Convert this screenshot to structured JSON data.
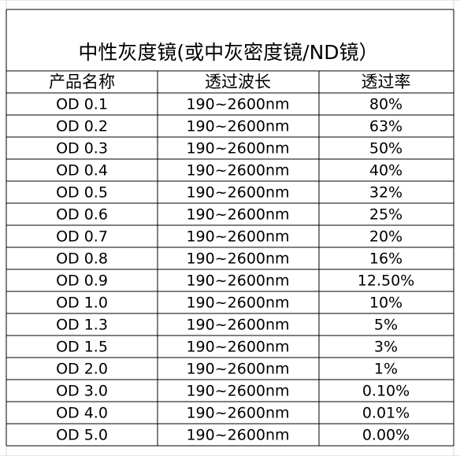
{
  "table": {
    "title": "中性灰度镜(或中灰密度镜/ND镜）",
    "headers": [
      "产品名称",
      "透过波长",
      "透过率"
    ],
    "rows": [
      [
        "OD 0.1",
        "190~2600nm",
        "80%"
      ],
      [
        "OD 0.2",
        "190~2600nm",
        "63%"
      ],
      [
        "OD 0.3",
        "190~2600nm",
        "50%"
      ],
      [
        "OD 0.4",
        "190~2600nm",
        "40%"
      ],
      [
        "OD 0.5",
        "190~2600nm",
        "32%"
      ],
      [
        "OD 0.6",
        "190~2600nm",
        "25%"
      ],
      [
        "OD 0.7",
        "190~2600nm",
        "20%"
      ],
      [
        "OD 0.8",
        "190~2600nm",
        "16%"
      ],
      [
        "OD 0.9",
        "190~2600nm",
        "12.50%"
      ],
      [
        "OD 1.0",
        "190~2600nm",
        "10%"
      ],
      [
        "OD 1.3",
        "190~2600nm",
        "5%"
      ],
      [
        "OD 1.5",
        "190~2600nm",
        "3%"
      ],
      [
        "OD 2.0",
        "190~2600nm",
        "1%"
      ],
      [
        "OD 3.0",
        "190~2600nm",
        "0.10%"
      ],
      [
        "OD 4.0",
        "190~2600nm",
        "0.01%"
      ],
      [
        "OD 5.0",
        "190~2600nm",
        "0.00%"
      ]
    ]
  }
}
